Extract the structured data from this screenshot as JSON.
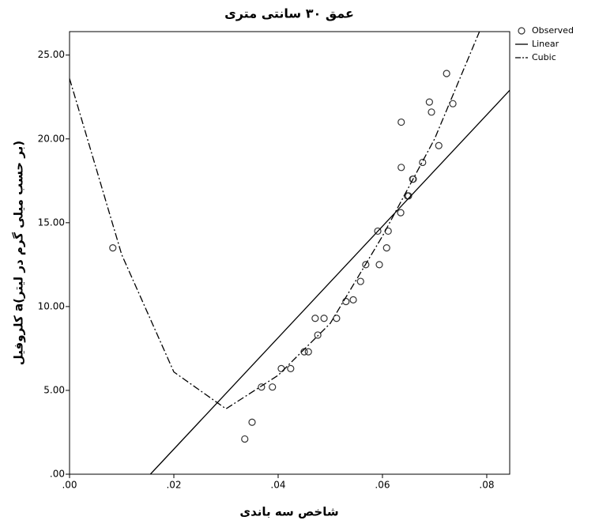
{
  "chart_data": {
    "type": "scatter",
    "title": "عمق ۳۰ سانتی متری",
    "x_label": "شاخص سه باندی",
    "y_label": "کلروفیل a(بر حسب میلی گرم در لیتر)",
    "xlim": [
      0,
      0.0844
    ],
    "ylim": [
      0,
      26.4
    ],
    "xticks": [
      {
        "value": 0,
        "label": ".00"
      },
      {
        "value": 0.02,
        "label": ".02"
      },
      {
        "value": 0.04,
        "label": ".04"
      },
      {
        "value": 0.06,
        "label": ".06"
      },
      {
        "value": 0.08,
        "label": ".08"
      }
    ],
    "yticks": [
      {
        "value": 0,
        "label": ".00"
      },
      {
        "value": 5,
        "label": "5.00"
      },
      {
        "value": 10,
        "label": "10.00"
      },
      {
        "value": 15,
        "label": "15.00"
      },
      {
        "value": 20,
        "label": "20.00"
      },
      {
        "value": 25,
        "label": "25.00"
      }
    ],
    "grid": false,
    "legend": "right",
    "series": [
      {
        "name": "Observed",
        "color": "#333333",
        "style": "marker",
        "x": [
          0.0083,
          0.0336,
          0.035,
          0.0368,
          0.0389,
          0.0406,
          0.0424,
          0.045,
          0.0458,
          0.0476,
          0.0471,
          0.0488,
          0.0512,
          0.053,
          0.0544,
          0.0558,
          0.0568,
          0.0594,
          0.0591,
          0.0611,
          0.0608,
          0.0635,
          0.0648,
          0.065,
          0.0658,
          0.0659,
          0.0636,
          0.0677,
          0.0708,
          0.0694,
          0.069,
          0.0636,
          0.0735,
          0.0723
        ],
        "values": [
          13.5,
          2.1,
          3.1,
          5.2,
          5.2,
          6.3,
          6.3,
          7.3,
          7.3,
          8.3,
          9.3,
          9.3,
          9.3,
          10.3,
          10.4,
          11.5,
          12.5,
          12.5,
          14.5,
          14.5,
          13.5,
          15.6,
          16.6,
          16.6,
          17.6,
          17.6,
          18.3,
          18.6,
          19.6,
          21.6,
          22.2,
          21.0,
          22.1,
          23.9
        ]
      },
      {
        "name": "Linear",
        "color": "#000000",
        "style": "solid",
        "x": [
          0.0155,
          0.0844
        ],
        "values": [
          0,
          22.9
        ]
      },
      {
        "name": "Cubic",
        "color": "#000000",
        "style": "dashdot",
        "x": [
          0,
          0.01,
          0.02,
          0.03,
          0.04,
          0.05,
          0.06,
          0.07,
          0.0786
        ],
        "values": [
          23.6,
          13.1,
          6.1,
          3.9,
          5.9,
          9.0,
          14.2,
          20.0,
          26.4
        ]
      }
    ]
  }
}
